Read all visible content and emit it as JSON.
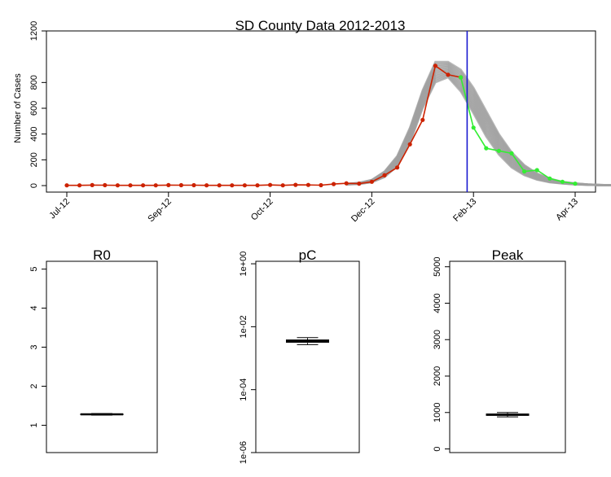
{
  "chart_data": [
    {
      "type": "line",
      "title": "SD County Data 2012-2013",
      "ylabel": "Number of Cases",
      "xlabel": "",
      "ylim": [
        0,
        1200
      ],
      "yticks": [
        0,
        200,
        400,
        600,
        800,
        1200
      ],
      "xticks": [
        {
          "label": "Jul-12",
          "week": 0
        },
        {
          "label": "Sep-12",
          "week": 8
        },
        {
          "label": "Oct-12",
          "week": 16
        },
        {
          "label": "Dec-12",
          "week": 24
        },
        {
          "label": "Feb-13",
          "week": 32
        },
        {
          "label": "Apr-13",
          "week": 40
        }
      ],
      "forecast_line_week": 31.5,
      "series": [
        {
          "role": "observed",
          "color": "#cc2200",
          "x": [
            0,
            1,
            2,
            3,
            4,
            5,
            6,
            7,
            8,
            9,
            10,
            11,
            12,
            13,
            14,
            15,
            16,
            17,
            18,
            19,
            20,
            21,
            22,
            23,
            24,
            25,
            26,
            27,
            28,
            29,
            30,
            31
          ],
          "y": [
            2,
            2,
            4,
            3,
            2,
            2,
            2,
            2,
            4,
            3,
            3,
            2,
            2,
            2,
            2,
            2,
            5,
            2,
            6,
            5,
            3,
            12,
            18,
            15,
            30,
            80,
            140,
            320,
            510,
            930,
            860,
            840
          ]
        },
        {
          "role": "held-out",
          "color": "#33ee33",
          "x": [
            31,
            32,
            33,
            34,
            35,
            36,
            37,
            38,
            39,
            40
          ],
          "y": [
            840,
            450,
            290,
            270,
            250,
            110,
            120,
            55,
            30,
            15
          ]
        }
      ],
      "model_band": {
        "color": "#a0a0a0",
        "x": [
          22,
          23,
          24,
          25,
          26,
          27,
          28,
          29,
          30,
          31,
          32,
          33,
          34,
          35,
          36,
          37,
          38,
          39,
          40,
          41,
          42,
          43
        ],
        "lower": [
          8,
          12,
          25,
          65,
          150,
          330,
          600,
          800,
          840,
          730,
          560,
          380,
          240,
          140,
          80,
          45,
          25,
          15,
          8,
          5,
          3,
          2
        ],
        "upper": [
          14,
          22,
          45,
          110,
          230,
          450,
          740,
          960,
          960,
          900,
          760,
          580,
          400,
          260,
          160,
          95,
          55,
          30,
          18,
          10,
          6,
          3
        ]
      }
    },
    {
      "type": "box",
      "title": "R0",
      "ylim": [
        0.3,
        5.2
      ],
      "yticks": [
        1,
        2,
        3,
        4,
        5
      ],
      "ytick_labels": [
        "1",
        "2",
        "3",
        "4",
        "5"
      ],
      "scale": "linear",
      "median": 1.28,
      "q1": 1.27,
      "q3": 1.29,
      "whisker_low": 1.26,
      "whisker_high": 1.3
    },
    {
      "type": "box",
      "title": "pC",
      "scale": "log",
      "ylim": [
        1e-06,
        1.2
      ],
      "yticks": [
        1e-06,
        0.0001,
        0.01,
        1
      ],
      "ytick_labels": [
        "1e-06",
        "1e-04",
        "1e-02",
        "1e+00"
      ],
      "median": 0.0035,
      "q1": 0.0032,
      "q3": 0.0038,
      "whisker_low": 0.0027,
      "whisker_high": 0.0045
    },
    {
      "type": "box",
      "title": "Peak",
      "scale": "linear",
      "ylim": [
        -100,
        5150
      ],
      "yticks": [
        0,
        1000,
        2000,
        3000,
        4000,
        5000
      ],
      "ytick_labels": [
        "0",
        "1000",
        "2000",
        "3000",
        "4000",
        "5000"
      ],
      "median": 940,
      "q1": 920,
      "q3": 960,
      "whisker_low": 880,
      "whisker_high": 1000
    }
  ]
}
